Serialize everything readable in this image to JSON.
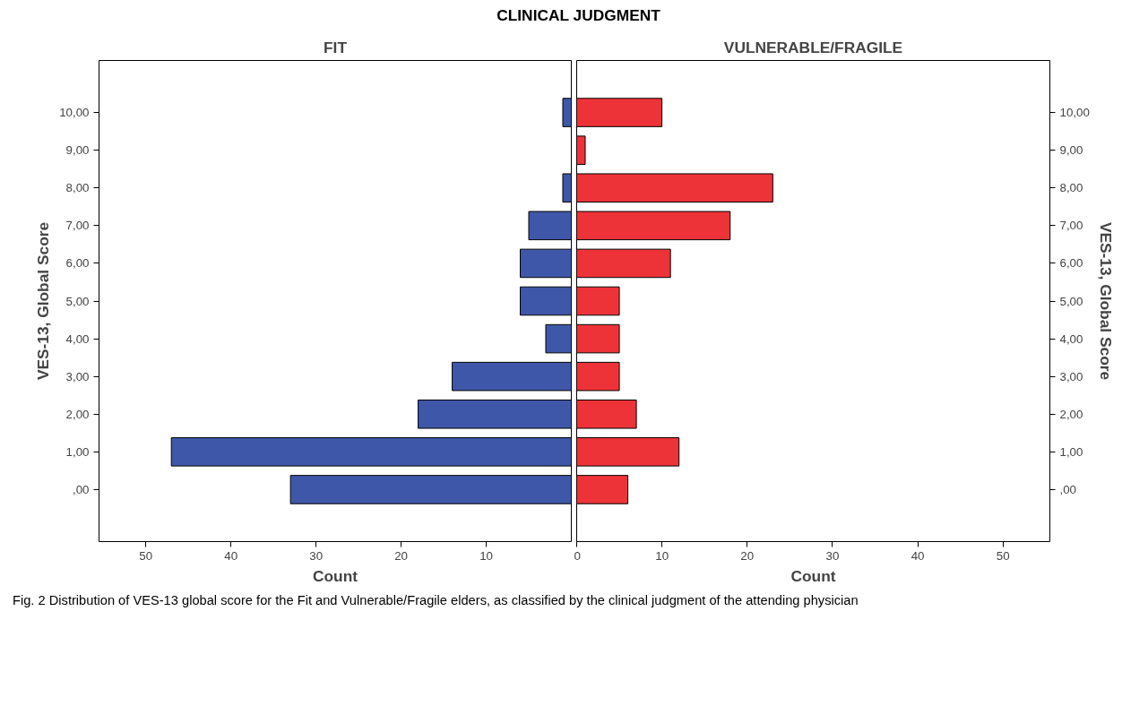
{
  "chart_data": [
    {
      "type": "bar",
      "orientation": "horizontal",
      "title": "FIT",
      "xlabel": "Count",
      "ylabel": "VES-13, Global Score",
      "annotations": [
        "CLINICAL JUDGMENT",
        "Fig. 2 Distribution of VES-13 global score for the Fit and Vulnerable/Fragile elders, as classified by the clinical judgment of the attending physician"
      ],
      "categories": [
        "10,00",
        "9,00",
        "8,00",
        "7,00",
        "6,00",
        "5,00",
        "4,00",
        "3,00",
        "2,00",
        "1,00",
        ",00"
      ],
      "values": [
        1,
        0,
        1,
        5,
        6,
        6,
        3,
        14,
        18,
        47,
        33
      ],
      "color": "#3f57a8",
      "xlim": [
        55.5,
        0
      ],
      "xticks": [
        50,
        40,
        30,
        20,
        10
      ],
      "grid": false
    },
    {
      "type": "bar",
      "orientation": "horizontal",
      "title": "VULNERABLE/FRAGILE",
      "xlabel": "Count",
      "ylabel": "VES-13, Global Score",
      "categories": [
        "10,00",
        "9,00",
        "8,00",
        "7,00",
        "6,00",
        "5,00",
        "4,00",
        "3,00",
        "2,00",
        "1,00",
        ",00"
      ],
      "values": [
        10,
        1,
        23,
        18,
        11,
        5,
        5,
        5,
        7,
        12,
        6
      ],
      "color": "#ee3338",
      "xlim": [
        0,
        55.5
      ],
      "xticks": [
        0,
        10,
        20,
        30,
        40,
        50
      ],
      "grid": false
    }
  ]
}
